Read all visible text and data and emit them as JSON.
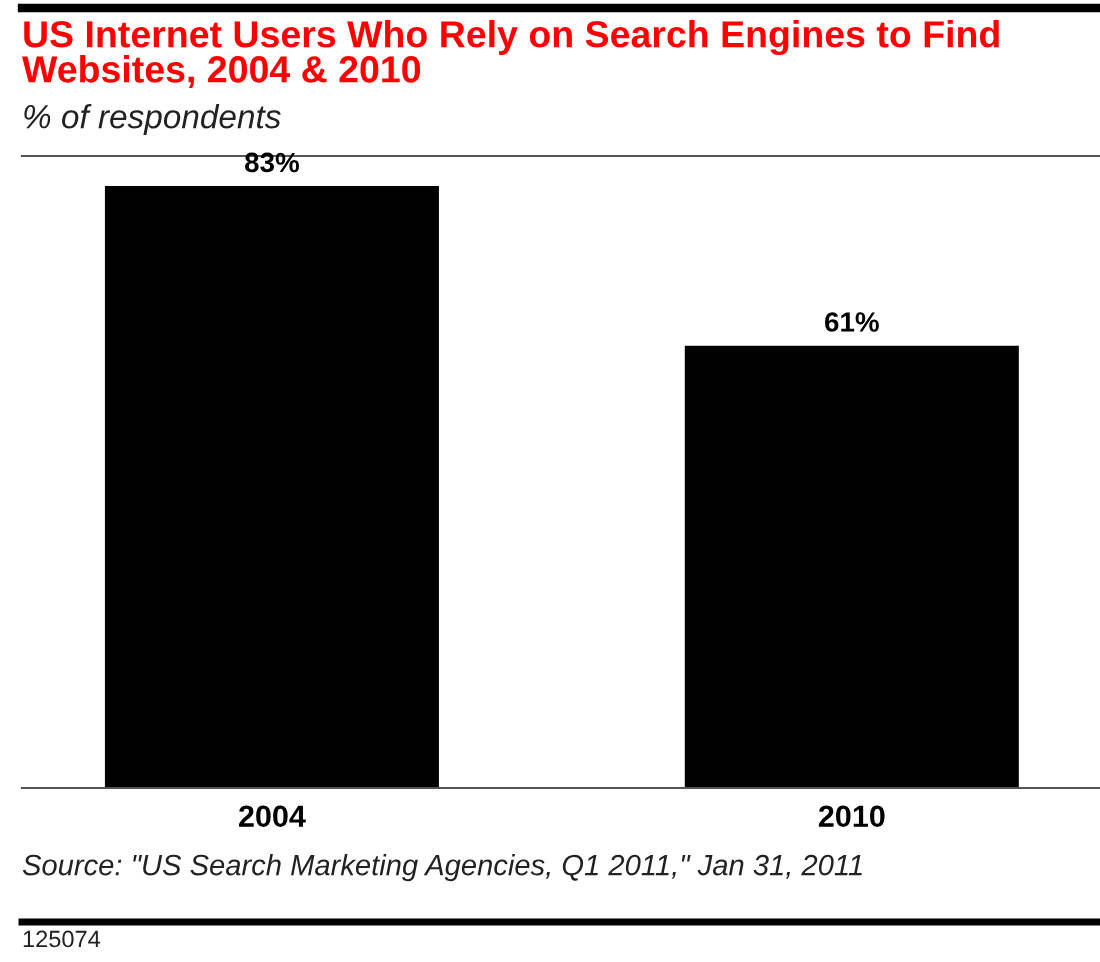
{
  "chart_data": {
    "type": "bar",
    "title": "US Internet Users Who Rely on Search Engines to Find Websites, 2004 & 2010",
    "subtitle": "% of respondents",
    "categories": [
      "2004",
      "2010"
    ],
    "values": [
      83,
      61
    ],
    "color": "#000000",
    "value_labels": [
      "83%",
      "61%"
    ],
    "annotations": [
      "Source: \"US Search Marketing Agencies, Q1 2011,\" Jan 31, 2011",
      "125074"
    ],
    "grid": false,
    "legend": false
  }
}
